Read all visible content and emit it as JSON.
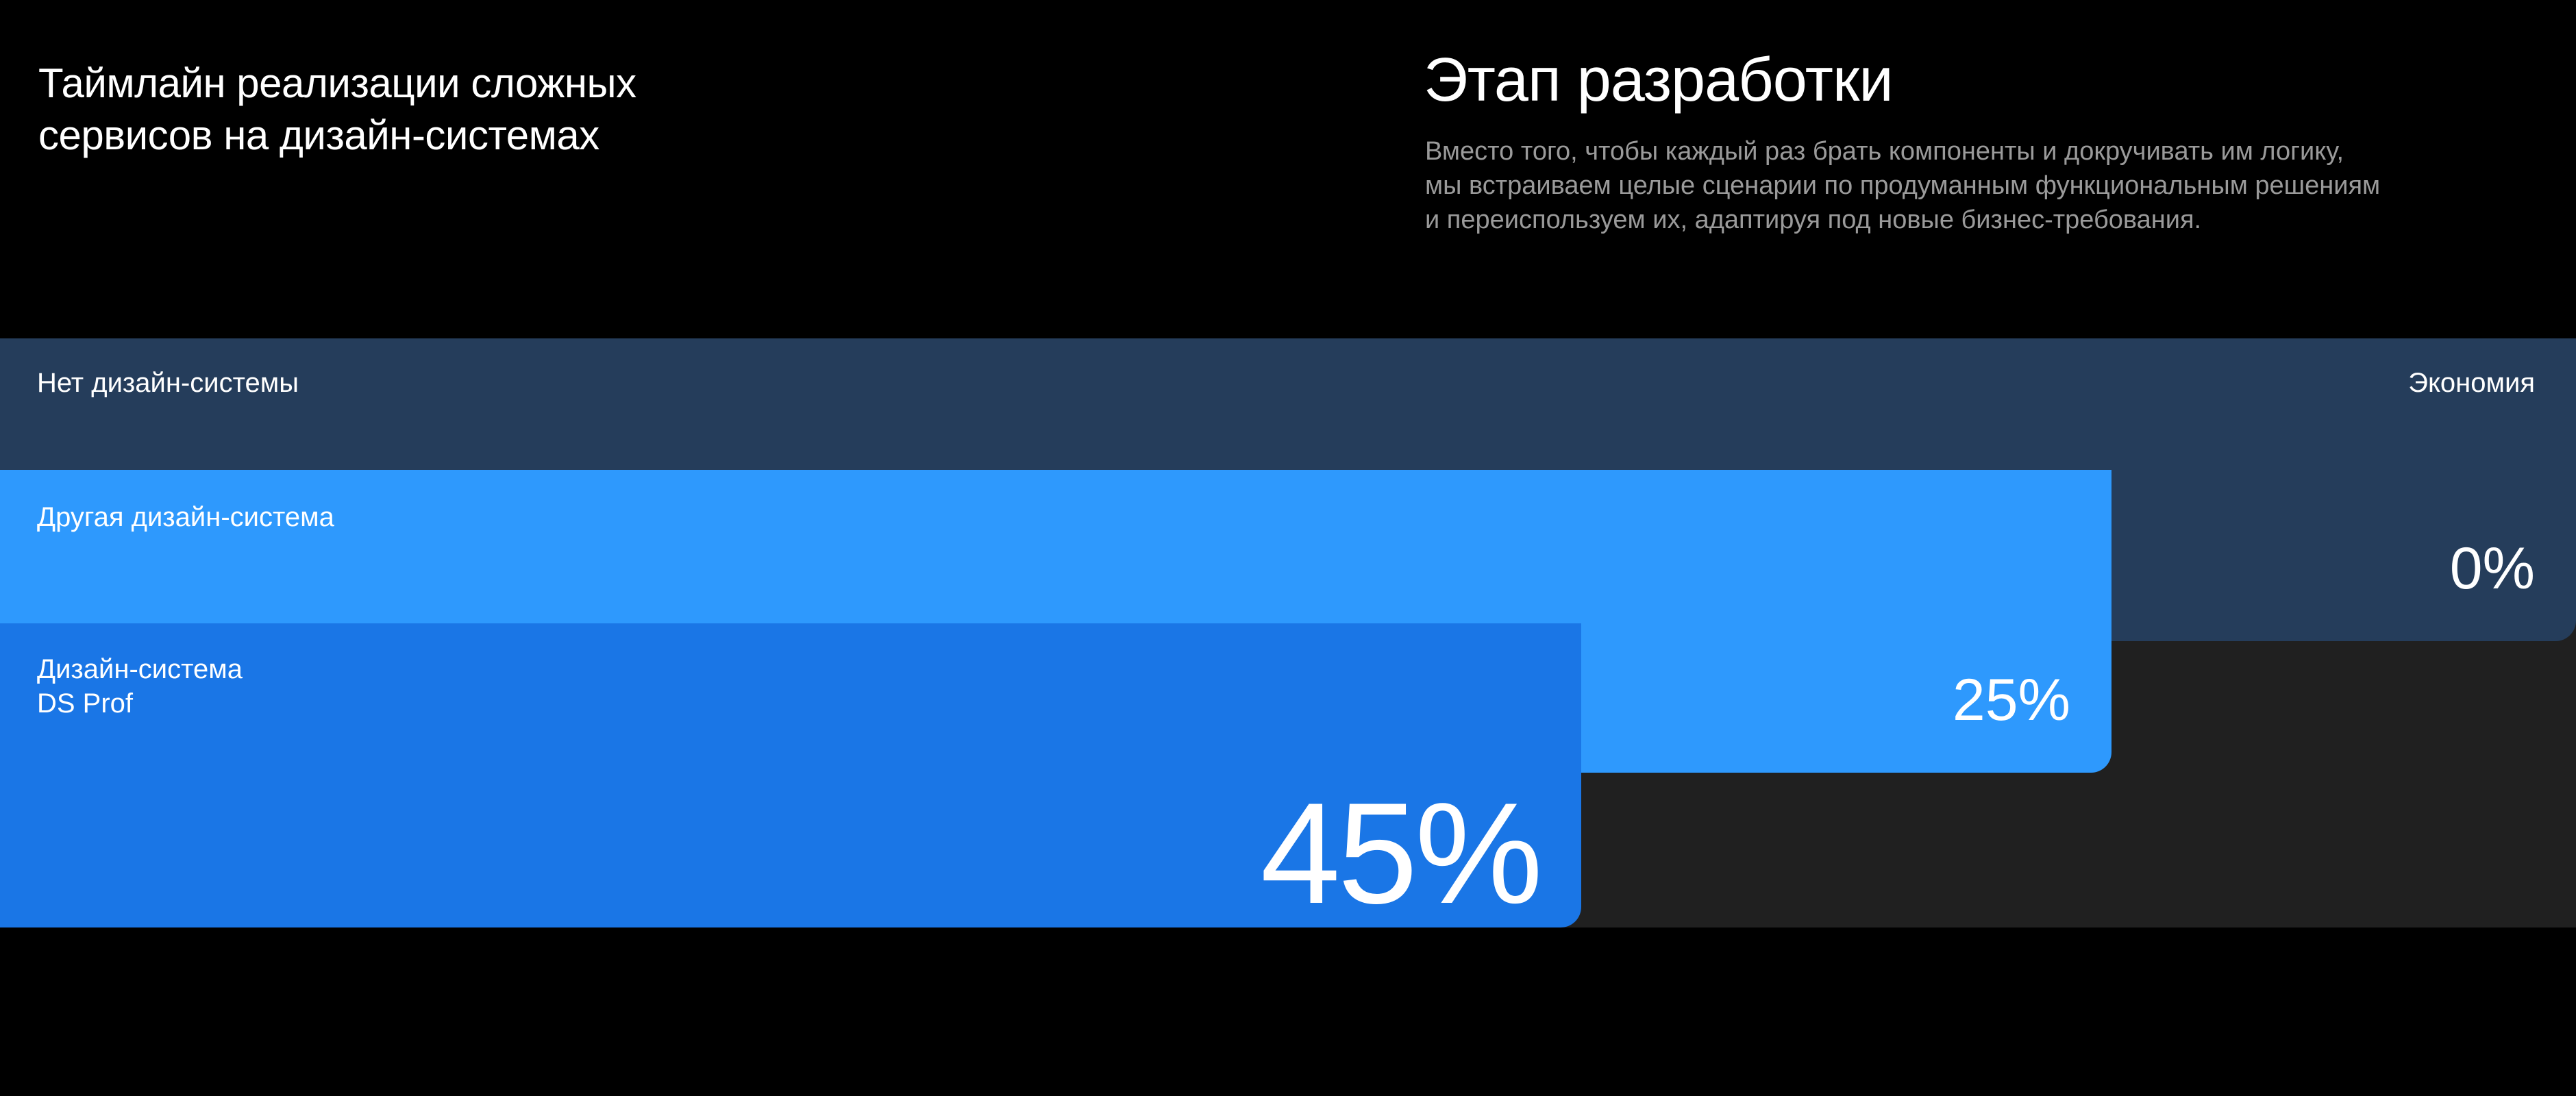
{
  "header": {
    "title_line1": "Таймлайн реализации сложных",
    "title_line2": "сервисов на дизайн-системах"
  },
  "stage": {
    "title": "Этап разработки",
    "description_line1": "Вместо того, чтобы каждый раз брать компоненты и докручивать им логику,",
    "description_line2": "мы встраиваем целые сценарии по продуманным функциональным решениям",
    "description_line3": "и переиспользуем их, адаптируя под новые бизнес-требования."
  },
  "chart_data": {
    "type": "bar",
    "value_header": "Экономия",
    "categories": [
      "Нет дизайн-системы",
      "Другая дизайн-система",
      "Дизайн-система DS Prof"
    ],
    "values": [
      0,
      25,
      45
    ],
    "value_labels": [
      "0%",
      "25%",
      "45%"
    ],
    "colors": [
      "#253d5b",
      "#2e99fd",
      "#1a76e6"
    ]
  },
  "bars": {
    "none": {
      "label": "Нет дизайн-системы",
      "value": "0%"
    },
    "other": {
      "label": "Другая дизайн-система",
      "value": "25%"
    },
    "ds": {
      "label_line1": "Дизайн-система",
      "label_line2": "DS Prof",
      "value": "45%"
    }
  },
  "colors": {
    "background": "#000000",
    "chart_area": "#202020",
    "bar_none": "#253d5b",
    "bar_other": "#2e99fd",
    "bar_ds": "#1a76e6",
    "description_text": "#9a9a9a"
  }
}
